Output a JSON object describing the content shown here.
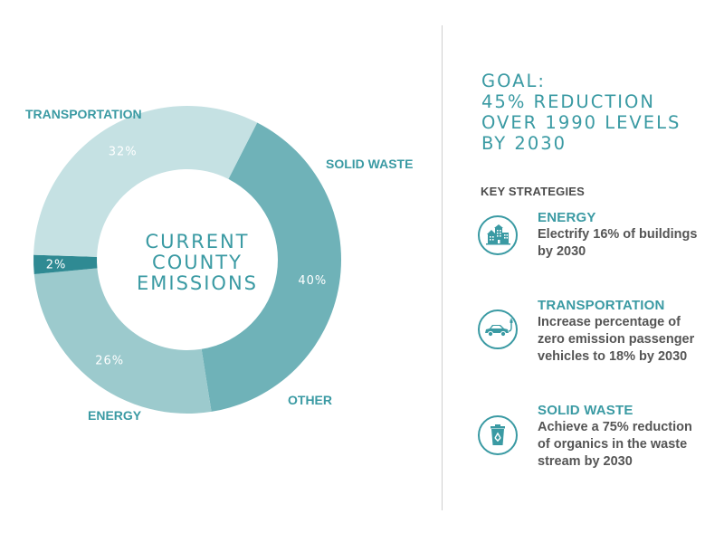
{
  "chart_data": {
    "type": "pie",
    "donut": true,
    "center_label": [
      "CURRENT",
      "COUNTY",
      "EMISSIONS"
    ],
    "slices": [
      {
        "name": "TRANSPORTATION",
        "value": 40,
        "label": "40%",
        "color": "#6fb2b8"
      },
      {
        "name": "SOLID WASTE",
        "value": 26,
        "label": "26%",
        "color": "#9ccacd"
      },
      {
        "name": "OTHER",
        "value": 2,
        "label": "2%",
        "color": "#2f8a93"
      },
      {
        "name": "ENERGY",
        "value": 32,
        "label": "32%",
        "color": "#c5e1e3"
      }
    ]
  },
  "goal": {
    "lines": [
      "GOAL:",
      "45% REDUCTION",
      "OVER 1990 LEVELS",
      "BY 2030"
    ]
  },
  "key_strategies_label": "KEY STRATEGIES",
  "strategies": [
    {
      "title": "ENERGY",
      "icon": "buildings-icon",
      "lines": [
        "Electrify 16% of buildings",
        "by 2030"
      ]
    },
    {
      "title": "TRANSPORTATION",
      "icon": "electric-car-icon",
      "lines": [
        "Increase percentage of",
        "zero emission passenger",
        "vehicles to 18% by 2030"
      ]
    },
    {
      "title": "SOLID WASTE",
      "icon": "recycling-bin-icon",
      "lines": [
        "Achieve a 75% reduction",
        "of organics in the waste",
        "stream by 2030"
      ]
    }
  ],
  "colors": {
    "accent": "#3a9aa3",
    "text": "#555555"
  }
}
